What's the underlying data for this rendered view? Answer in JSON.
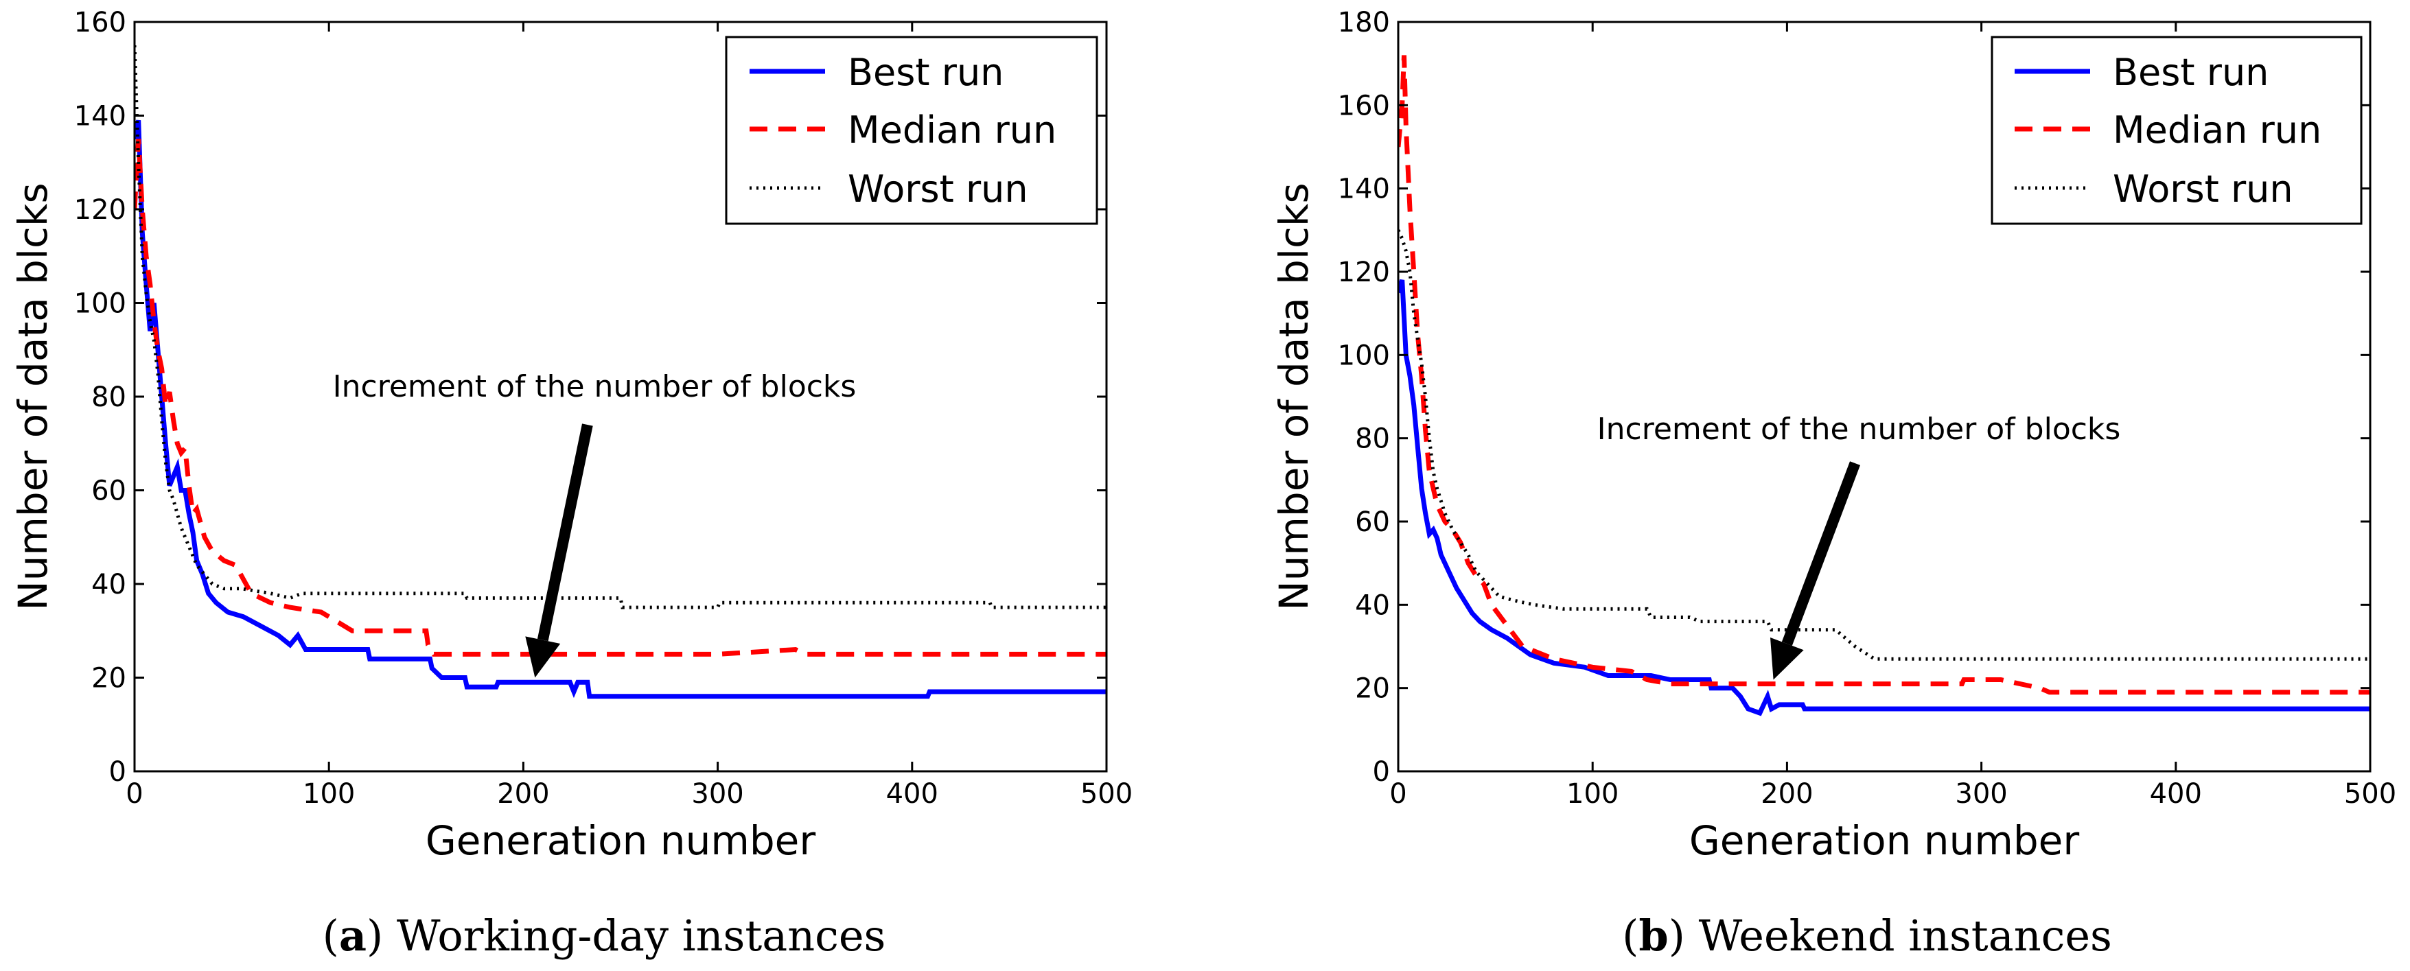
{
  "chart_data": [
    {
      "type": "line",
      "caption_letter": "a",
      "caption_text": "Working-day instances",
      "xlabel": "Generation number",
      "ylabel": "Number of data blcks",
      "xlim": [
        0,
        500
      ],
      "ylim": [
        0,
        160
      ],
      "xticks": [
        0,
        100,
        200,
        300,
        400,
        500
      ],
      "yticks": [
        0,
        20,
        40,
        60,
        80,
        100,
        120,
        140,
        160
      ],
      "legend_position": "upper-right",
      "annotation": {
        "text": "Increment of the number of blocks",
        "arrow_from": [
          233,
          74
        ],
        "arrow_to": [
          206,
          20
        ]
      },
      "series": [
        {
          "name": "Best run",
          "color": "#0000ff",
          "style": "solid",
          "points": [
            [
              0,
              135
            ],
            [
              2,
              139
            ],
            [
              4,
              115
            ],
            [
              6,
              104
            ],
            [
              8,
              94
            ],
            [
              10,
              100
            ],
            [
              12,
              90
            ],
            [
              14,
              80
            ],
            [
              16,
              70
            ],
            [
              18,
              61
            ],
            [
              20,
              63
            ],
            [
              22,
              65
            ],
            [
              24,
              60
            ],
            [
              26,
              60
            ],
            [
              28,
              55
            ],
            [
              30,
              51
            ],
            [
              32,
              45
            ],
            [
              35,
              42
            ],
            [
              38,
              38
            ],
            [
              42,
              36
            ],
            [
              48,
              34
            ],
            [
              56,
              33
            ],
            [
              65,
              31
            ],
            [
              74,
              29
            ],
            [
              80,
              27
            ],
            [
              84,
              29
            ],
            [
              88,
              26
            ],
            [
              100,
              26
            ],
            [
              120,
              26
            ],
            [
              121,
              24
            ],
            [
              152,
              24
            ],
            [
              153,
              22
            ],
            [
              158,
              20
            ],
            [
              170,
              20
            ],
            [
              171,
              18
            ],
            [
              186,
              18
            ],
            [
              187,
              19
            ],
            [
              224,
              19
            ],
            [
              226,
              17
            ],
            [
              228,
              19
            ],
            [
              233,
              19
            ],
            [
              234,
              16
            ],
            [
              408,
              16
            ],
            [
              409,
              17
            ],
            [
              500,
              17
            ]
          ]
        },
        {
          "name": "Median run",
          "color": "#ff0000",
          "style": "dashed",
          "points": [
            [
              0,
              120
            ],
            [
              2,
              135
            ],
            [
              4,
              120
            ],
            [
              6,
              110
            ],
            [
              8,
              104
            ],
            [
              10,
              96
            ],
            [
              12,
              90
            ],
            [
              14,
              86
            ],
            [
              16,
              78
            ],
            [
              18,
              81
            ],
            [
              20,
              75
            ],
            [
              22,
              70
            ],
            [
              24,
              68
            ],
            [
              26,
              69
            ],
            [
              28,
              61
            ],
            [
              30,
              55
            ],
            [
              32,
              56
            ],
            [
              36,
              50
            ],
            [
              40,
              47
            ],
            [
              46,
              45
            ],
            [
              52,
              44
            ],
            [
              60,
              38
            ],
            [
              70,
              36
            ],
            [
              80,
              35
            ],
            [
              96,
              34
            ],
            [
              104,
              32
            ],
            [
              112,
              30
            ],
            [
              130,
              30
            ],
            [
              150,
              30
            ],
            [
              151,
              27
            ],
            [
              154,
              25
            ],
            [
              300,
              25
            ],
            [
              340,
              26
            ],
            [
              345,
              25
            ],
            [
              500,
              25
            ]
          ]
        },
        {
          "name": "Worst run",
          "color": "#000000",
          "style": "dotted",
          "points": [
            [
              0,
              155
            ],
            [
              2,
              130
            ],
            [
              4,
              110
            ],
            [
              6,
              102
            ],
            [
              8,
              96
            ],
            [
              10,
              92
            ],
            [
              12,
              85
            ],
            [
              14,
              75
            ],
            [
              16,
              66
            ],
            [
              18,
              60
            ],
            [
              20,
              58
            ],
            [
              22,
              55
            ],
            [
              24,
              52
            ],
            [
              28,
              48
            ],
            [
              32,
              44
            ],
            [
              36,
              42
            ],
            [
              40,
              40
            ],
            [
              46,
              39
            ],
            [
              55,
              39
            ],
            [
              70,
              38
            ],
            [
              80,
              37
            ],
            [
              86,
              38
            ],
            [
              170,
              38
            ],
            [
              171,
              37
            ],
            [
              250,
              37
            ],
            [
              251,
              35
            ],
            [
              300,
              35
            ],
            [
              301,
              36
            ],
            [
              440,
              36
            ],
            [
              441,
              35
            ],
            [
              500,
              35
            ]
          ]
        }
      ]
    },
    {
      "type": "line",
      "caption_letter": "b",
      "caption_text": "Weekend instances",
      "xlabel": "Generation number",
      "ylabel": "Number of data blcks",
      "xlim": [
        0,
        500
      ],
      "ylim": [
        0,
        180
      ],
      "xticks": [
        0,
        100,
        200,
        300,
        400,
        500
      ],
      "yticks": [
        0,
        20,
        40,
        60,
        80,
        100,
        120,
        140,
        160,
        180
      ],
      "legend_position": "upper-right",
      "annotation": {
        "text": "Increment of the number of blocks",
        "arrow_from": [
          235,
          74
        ],
        "arrow_to": [
          193,
          22
        ]
      },
      "series": [
        {
          "name": "Best run",
          "color": "#0000ff",
          "style": "solid",
          "points": [
            [
              0,
              115
            ],
            [
              2,
              118
            ],
            [
              4,
              100
            ],
            [
              6,
              95
            ],
            [
              8,
              88
            ],
            [
              10,
              78
            ],
            [
              12,
              68
            ],
            [
              14,
              62
            ],
            [
              16,
              57
            ],
            [
              18,
              58
            ],
            [
              20,
              56
            ],
            [
              22,
              52
            ],
            [
              26,
              48
            ],
            [
              30,
              44
            ],
            [
              34,
              41
            ],
            [
              38,
              38
            ],
            [
              42,
              36
            ],
            [
              48,
              34
            ],
            [
              56,
              32
            ],
            [
              62,
              30
            ],
            [
              68,
              28
            ],
            [
              80,
              26
            ],
            [
              96,
              25
            ],
            [
              108,
              23
            ],
            [
              130,
              23
            ],
            [
              140,
              22
            ],
            [
              160,
              22
            ],
            [
              161,
              20
            ],
            [
              172,
              20
            ],
            [
              176,
              18
            ],
            [
              180,
              15
            ],
            [
              186,
              14
            ],
            [
              190,
              18
            ],
            [
              192,
              15
            ],
            [
              196,
              16
            ],
            [
              208,
              16
            ],
            [
              209,
              15
            ],
            [
              500,
              15
            ]
          ]
        },
        {
          "name": "Median run",
          "color": "#ff0000",
          "style": "dashed",
          "points": [
            [
              0,
              150
            ],
            [
              2,
              160
            ],
            [
              3,
              172
            ],
            [
              4,
              155
            ],
            [
              6,
              135
            ],
            [
              8,
              120
            ],
            [
              10,
              105
            ],
            [
              12,
              95
            ],
            [
              14,
              82
            ],
            [
              16,
              72
            ],
            [
              18,
              68
            ],
            [
              20,
              64
            ],
            [
              24,
              60
            ],
            [
              28,
              58
            ],
            [
              32,
              55
            ],
            [
              36,
              50
            ],
            [
              40,
              47
            ],
            [
              44,
              45
            ],
            [
              48,
              40
            ],
            [
              56,
              35
            ],
            [
              64,
              30
            ],
            [
              80,
              27
            ],
            [
              100,
              25
            ],
            [
              120,
              24
            ],
            [
              128,
              22
            ],
            [
              140,
              21
            ],
            [
              200,
              21
            ],
            [
              290,
              21
            ],
            [
              291,
              22
            ],
            [
              310,
              22
            ],
            [
              330,
              20
            ],
            [
              335,
              19
            ],
            [
              500,
              19
            ]
          ]
        },
        {
          "name": "Worst run",
          "color": "#000000",
          "style": "dotted",
          "points": [
            [
              0,
              130
            ],
            [
              2,
              128
            ],
            [
              4,
              125
            ],
            [
              6,
              120
            ],
            [
              8,
              110
            ],
            [
              10,
              104
            ],
            [
              12,
              98
            ],
            [
              14,
              90
            ],
            [
              16,
              80
            ],
            [
              18,
              72
            ],
            [
              20,
              68
            ],
            [
              24,
              62
            ],
            [
              28,
              58
            ],
            [
              32,
              55
            ],
            [
              36,
              52
            ],
            [
              40,
              48
            ],
            [
              46,
              45
            ],
            [
              52,
              42
            ],
            [
              60,
              41
            ],
            [
              70,
              40
            ],
            [
              85,
              39
            ],
            [
              128,
              39
            ],
            [
              130,
              37
            ],
            [
              150,
              37
            ],
            [
              155,
              36
            ],
            [
              190,
              36
            ],
            [
              192,
              34
            ],
            [
              225,
              34
            ],
            [
              235,
              30
            ],
            [
              245,
              27
            ],
            [
              500,
              27
            ]
          ]
        }
      ]
    }
  ]
}
